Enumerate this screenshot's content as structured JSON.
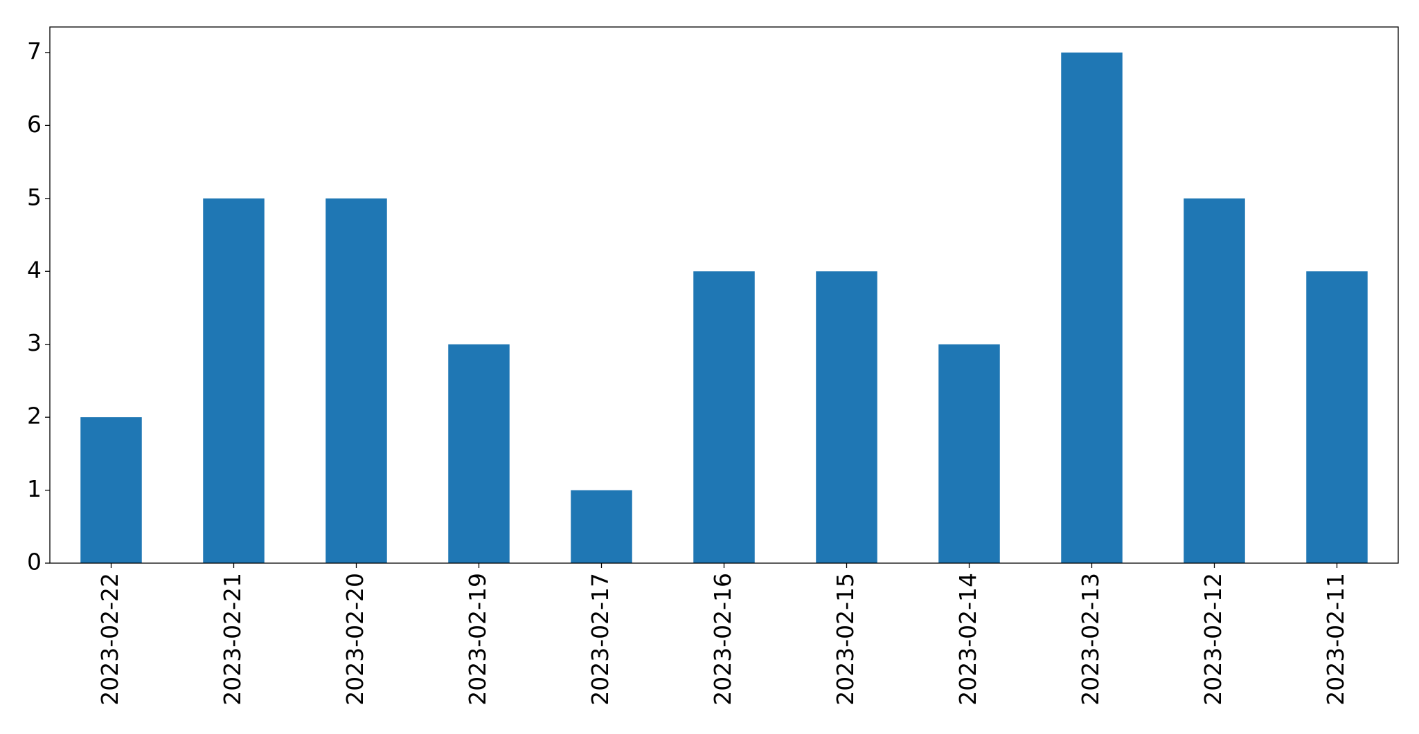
{
  "chart_data": {
    "type": "bar",
    "categories": [
      "2023-02-22",
      "2023-02-21",
      "2023-02-20",
      "2023-02-19",
      "2023-02-17",
      "2023-02-16",
      "2023-02-15",
      "2023-02-14",
      "2023-02-13",
      "2023-02-12",
      "2023-02-11"
    ],
    "values": [
      2,
      5,
      5,
      3,
      1,
      4,
      4,
      3,
      7,
      5,
      4
    ],
    "color": "#1f77b4",
    "ylim": [
      0,
      7.35
    ],
    "yticks": [
      0,
      1,
      2,
      3,
      4,
      5,
      6,
      7
    ],
    "grid": false
  }
}
